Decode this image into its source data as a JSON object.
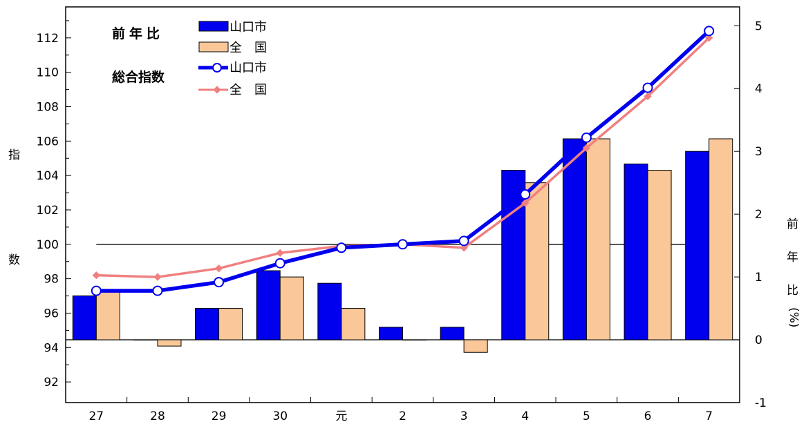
{
  "chart_data": {
    "type": "bar+line",
    "categories": [
      "27",
      "28",
      "29",
      "30",
      "元",
      "2",
      "3",
      "4",
      "5",
      "6",
      "7"
    ],
    "left_axis": {
      "label_top": "指",
      "label_bottom": "数",
      "ylim": [
        90.8,
        113.8
      ],
      "ticks": [
        "92",
        "94",
        "96",
        "98",
        "100",
        "102",
        "104",
        "106",
        "108",
        "110",
        "112"
      ]
    },
    "right_axis": {
      "label_chars": [
        "前",
        "年",
        "比"
      ],
      "label_unit": "(%)",
      "ylim": [
        -1,
        5.3
      ],
      "ticks": [
        "-1",
        "0",
        "1",
        "2",
        "3",
        "4",
        "5"
      ]
    },
    "reference_line": 100,
    "bar_series": [
      {
        "name": "山口市",
        "color": "#0000ee",
        "values": [
          0.7,
          0.0,
          0.5,
          1.1,
          0.9,
          0.2,
          0.2,
          2.7,
          3.2,
          2.8,
          3.0
        ]
      },
      {
        "name": "全　国",
        "color": "#fac898",
        "values": [
          0.8,
          -0.1,
          0.5,
          1.0,
          0.5,
          0.0,
          -0.2,
          2.5,
          3.2,
          2.7,
          3.2
        ]
      }
    ],
    "line_series": [
      {
        "name": "山口市",
        "color": "#0000ee",
        "values": [
          97.3,
          97.3,
          97.8,
          98.9,
          99.8,
          100.0,
          100.2,
          102.9,
          106.2,
          109.1,
          112.4
        ]
      },
      {
        "name": "全　国",
        "color": "#f08080",
        "values": [
          98.2,
          98.1,
          98.6,
          99.5,
          99.9,
          100.0,
          99.8,
          102.4,
          105.6,
          108.6,
          112.0
        ]
      }
    ],
    "legend": {
      "bar_heading": "前年比",
      "line_heading": "総合指数",
      "position": "top-left"
    }
  }
}
